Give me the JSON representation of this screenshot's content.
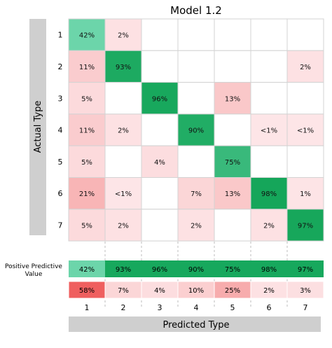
{
  "chart_data": {
    "type": "heatmap",
    "title": "Model 1.2",
    "ylabel": "Actual Type",
    "xlabel": "Predicted Type",
    "row_labels": [
      "1",
      "2",
      "3",
      "4",
      "5",
      "6",
      "7"
    ],
    "col_labels": [
      "1",
      "2",
      "3",
      "4",
      "5",
      "6",
      "7"
    ],
    "matrix": [
      [
        "42%",
        "2%",
        "",
        "",
        "",
        "",
        ""
      ],
      [
        "11%",
        "93%",
        "",
        "",
        "",
        "",
        "2%"
      ],
      [
        "5%",
        "",
        "96%",
        "",
        "13%",
        "",
        ""
      ],
      [
        "11%",
        "2%",
        "",
        "90%",
        "",
        "<1%",
        "<1%"
      ],
      [
        "5%",
        "",
        "4%",
        "",
        "75%",
        "",
        ""
      ],
      [
        "21%",
        "<1%",
        "",
        "7%",
        "13%",
        "98%",
        "1%"
      ],
      [
        "5%",
        "2%",
        "",
        "2%",
        "",
        "2%",
        "97%"
      ]
    ],
    "ppv_label_line1": "Positive Predictive",
    "ppv_label_line2": "Value",
    "ppv": [
      "42%",
      "93%",
      "96%",
      "90%",
      "75%",
      "98%",
      "97%"
    ],
    "error_row": [
      "58%",
      "7%",
      "4%",
      "10%",
      "25%",
      "2%",
      "3%"
    ],
    "colors": {
      "green_scale": [
        "#6fd7ad",
        "#15a65a"
      ],
      "red_scale": [
        "#fde6e8",
        "#ee5a5a"
      ],
      "ppv_green": "#17a85d",
      "axis_bar": "#cfcfcf",
      "grid": "#d3d3d3"
    }
  }
}
